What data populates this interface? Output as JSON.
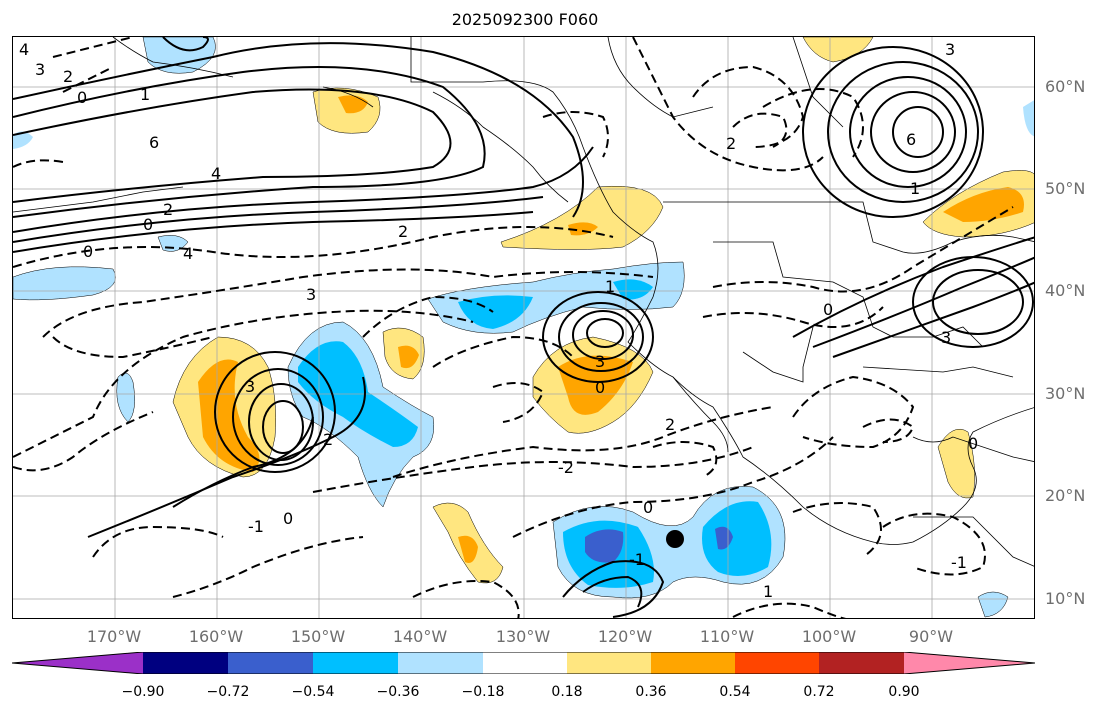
{
  "title": "2025092300 F060",
  "lat_labels": [
    "60°N",
    "50°N",
    "40°N",
    "30°N",
    "20°N",
    "10°N"
  ],
  "lon_labels": [
    "170°W",
    "160°W",
    "150°W",
    "140°W",
    "130°W",
    "120°W",
    "110°W",
    "100°W",
    "90°W"
  ],
  "colorbar": {
    "colors": [
      "#9b30c8",
      "#000080",
      "#3a5fcd",
      "#00bfff",
      "#b0e2ff",
      "#ffffff",
      "#ffe680",
      "#ffa500",
      "#ff4500",
      "#b22222",
      "#ff88aa"
    ],
    "ticks": [
      "−0.90",
      "−0.72",
      "−0.54",
      "−0.36",
      "−0.18",
      "0.18",
      "0.36",
      "0.54",
      "0.72",
      "0.90"
    ]
  },
  "contour_labels": [
    "4",
    "3",
    "2",
    "0",
    "6",
    "4",
    "2",
    "0",
    "3",
    "4",
    "2",
    "1",
    "0",
    "2",
    "3",
    "0",
    "-2",
    "0",
    "-1",
    "1",
    "-1",
    "0",
    "2",
    "3",
    "6",
    "1",
    "3",
    "0",
    "2",
    "3",
    "0",
    "-1",
    "1"
  ],
  "colors": {
    "positive": "#ffe680",
    "positive_mid": "#ffa500",
    "negative": "#b0e2ff",
    "negative_mid": "#00bfff",
    "negative_deep": "#3a5fcd"
  }
}
